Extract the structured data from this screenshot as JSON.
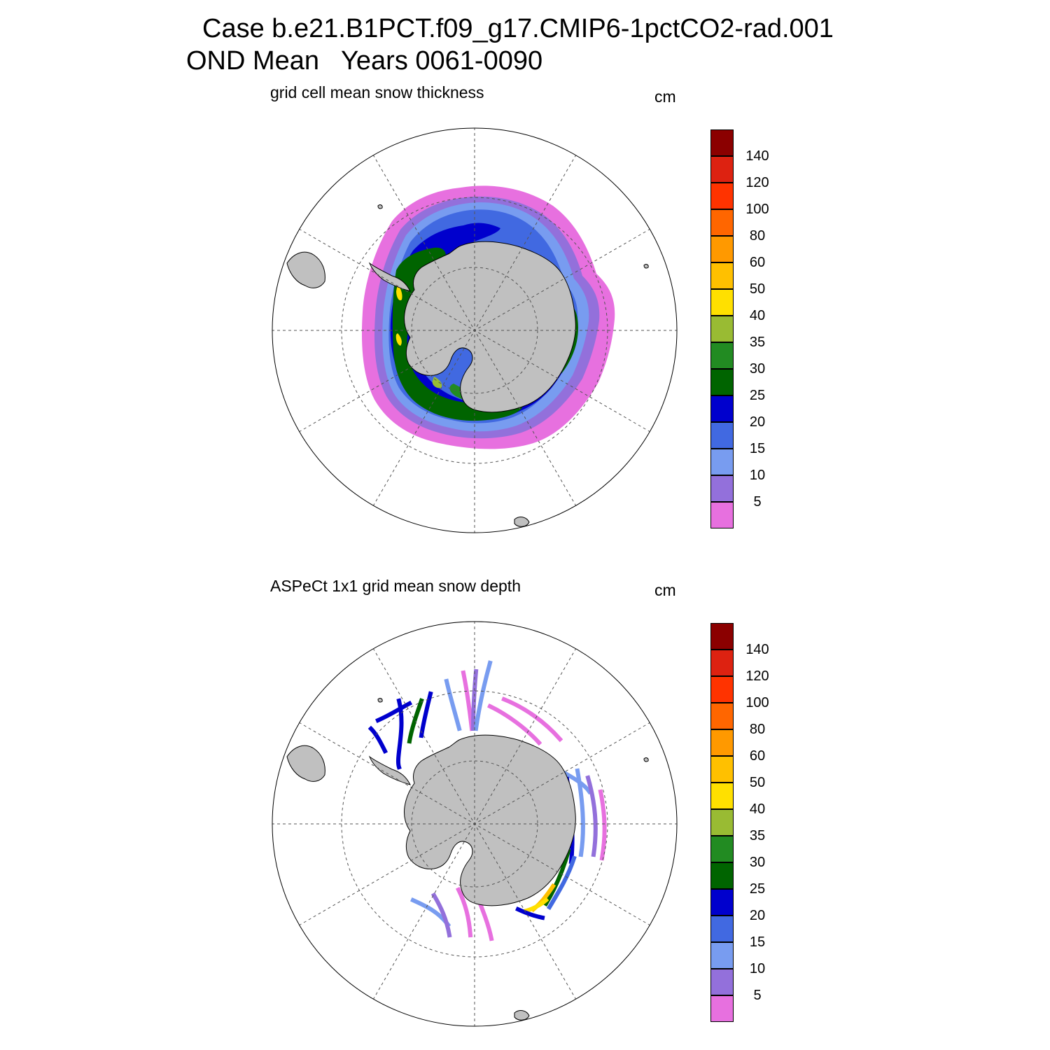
{
  "figure": {
    "title_line1": "Case b.e21.B1PCT.f09_g17.CMIP6-1pctCO2-rad.001",
    "title_line2": "OND Mean   Years 0061-0090"
  },
  "panels": [
    {
      "subtitle": "grid cell mean snow thickness",
      "units": "cm"
    },
    {
      "subtitle": "ASPeCt 1x1 grid mean snow depth",
      "units": "cm"
    }
  ],
  "colorbar": {
    "levels": [
      "5",
      "10",
      "15",
      "20",
      "25",
      "30",
      "35",
      "40",
      "50",
      "60",
      "80",
      "100",
      "120",
      "140"
    ],
    "colors": [
      "#e770df",
      "#9370db",
      "#789cf0",
      "#4169e1",
      "#0000cd",
      "#006400",
      "#228b22",
      "#99bb33",
      "#ffe000",
      "#ffc000",
      "#ff9900",
      "#ff6600",
      "#ff3300",
      "#dd2211",
      "#8b0000"
    ]
  },
  "colors": {
    "land": "#c0c0c0",
    "grid": "#555555",
    "coast": "#000000"
  }
}
